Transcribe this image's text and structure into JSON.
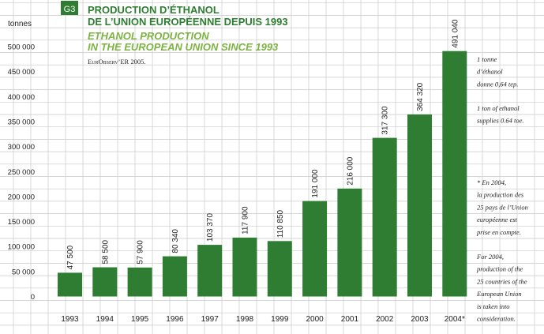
{
  "figure": {
    "badge": "G3",
    "title_fr_line1": "PRODUCTION D’ÉTHANOL",
    "title_fr_line2": "DE L’UNION EUROPÉENNE DEPUIS 1993",
    "title_en_line1": "ETHANOL PRODUCTION",
    "title_en_line2": "IN THE EUROPEAN UNION SINCE 1993",
    "source": "EurObserv’ER 2005."
  },
  "colors": {
    "bar": "#2e7d32",
    "title_green": "#2e7d32",
    "subtitle_green": "#7cb342",
    "grid": "#c9c9c9",
    "text": "#222222"
  },
  "notes": {
    "conv_fr": [
      "1 tonne",
      "d’éthanol",
      "donne 0,64 tep."
    ],
    "conv_en": [
      "1 ton of ethanol",
      "supplies 0.64 toe."
    ],
    "star_fr": [
      "* En 2004,",
      "la production des",
      "25 pays de l’Union",
      "européenne est",
      "prise en compte."
    ],
    "star_en": [
      "For 2004,",
      "production of the",
      "25 countries of the",
      "European Union",
      "is taken into",
      "consideration."
    ]
  },
  "chart_data": {
    "type": "bar",
    "ylabel": "tonnes",
    "ylim": [
      0,
      500000
    ],
    "yticks": [
      "0",
      "50 000",
      "100 000",
      "150 000",
      "200 000",
      "250 000",
      "300 000",
      "350 000",
      "400 000",
      "450 000",
      "500 000"
    ],
    "categories": [
      "1993",
      "1994",
      "1995",
      "1996",
      "1997",
      "1998",
      "1999",
      "2000",
      "2001",
      "2002",
      "2003",
      "2004*"
    ],
    "values": [
      47500,
      58500,
      57900,
      80340,
      103370,
      117900,
      110850,
      191000,
      216000,
      317300,
      364320,
      491040
    ],
    "value_labels": [
      "47 500",
      "58 500",
      "57 900",
      "80 340",
      "103 370",
      "117 900",
      "110 850",
      "191 000",
      "216 000",
      "317 300",
      "364 320",
      "491 040"
    ],
    "grid": true
  }
}
